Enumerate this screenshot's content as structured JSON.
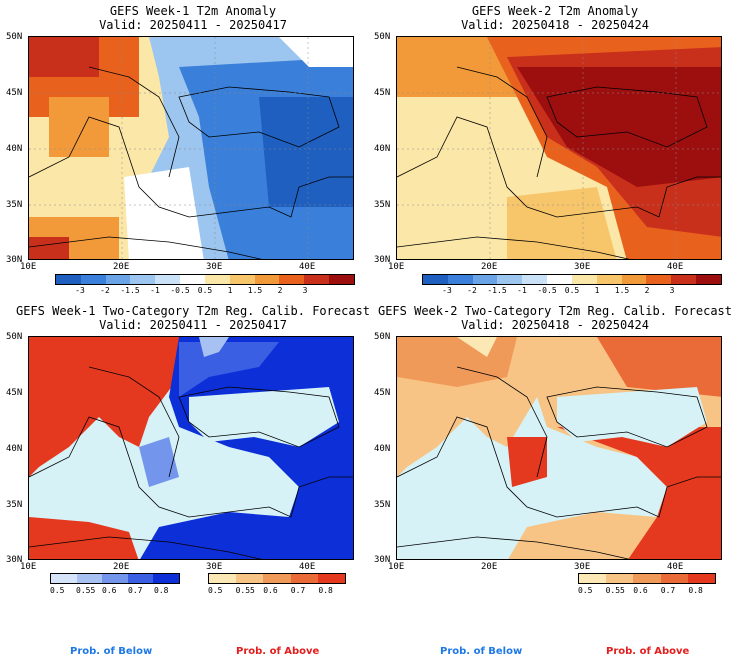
{
  "panels": [
    {
      "title": "GEFS Week-1 T2m Anomaly",
      "valid": "Valid: 20250411 - 20250417"
    },
    {
      "title": "GEFS Week-2 T2m Anomaly",
      "valid": "Valid: 20250418 - 20250424"
    },
    {
      "title": "GEFS Week-1 Two-Category T2m Reg. Calib. Forecast",
      "valid": "Valid: 20250411 - 20250417"
    },
    {
      "title": "GEFS Week-2 Two-Category T2m Reg. Calib. Forecast",
      "valid": "Valid: 20250418 - 20250424"
    }
  ],
  "axes": {
    "lat_labels": [
      "50N",
      "45N",
      "40N",
      "35N",
      "30N"
    ],
    "lon_labels": [
      "10E",
      "20E",
      "30E",
      "40E"
    ]
  },
  "anomaly_colorbar": {
    "labels": [
      "-3",
      "-2",
      "-1.5",
      "-1",
      "-0.5",
      "0.5",
      "1",
      "1.5",
      "2",
      "3"
    ],
    "colors": [
      "#1f5fbf",
      "#3a7fd9",
      "#6aa4e6",
      "#9cc6ef",
      "#c9e2f7",
      "#ffffff",
      "#fbe7a8",
      "#f8c66a",
      "#f29a3a",
      "#e8621e",
      "#c9301c",
      "#9d0f0f"
    ]
  },
  "below_colorbar": {
    "labels": [
      "0.5",
      "0.55",
      "0.6",
      "0.7",
      "0.8"
    ],
    "colors": [
      "#d6e4fa",
      "#a7c1f3",
      "#7396ec",
      "#3a5fe3",
      "#0d2fd8"
    ]
  },
  "above_colorbar": {
    "labels": [
      "0.5",
      "0.55",
      "0.6",
      "0.7",
      "0.8"
    ],
    "colors": [
      "#fbe8b4",
      "#f7c486",
      "#f09a5a",
      "#ea6a38",
      "#e5391f"
    ]
  },
  "legend": {
    "below": "Prob. of Below",
    "above": "Prob. of Above"
  },
  "colors": {
    "below_text": "#1e78e6",
    "above_text": "#e21e1e",
    "sea": "#d6f2f7"
  }
}
